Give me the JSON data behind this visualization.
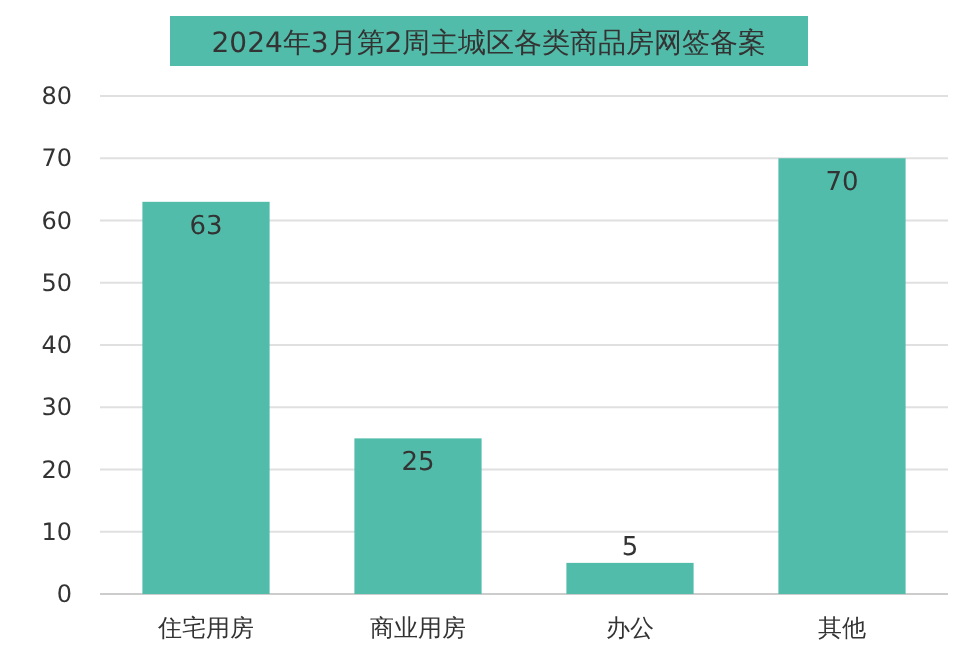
{
  "chart_data": {
    "type": "bar",
    "title": "2024年3月第2周主城区各类商品房网签备案",
    "categories": [
      "住宅用房",
      "商业用房",
      "办公",
      "其他"
    ],
    "values": [
      63,
      25,
      5,
      70
    ],
    "color": "#52bcaa",
    "ylim": [
      0,
      80
    ],
    "yticks": [
      0,
      10,
      20,
      30,
      40,
      50,
      60,
      70,
      80
    ],
    "grid": "y",
    "data_labels": true
  }
}
